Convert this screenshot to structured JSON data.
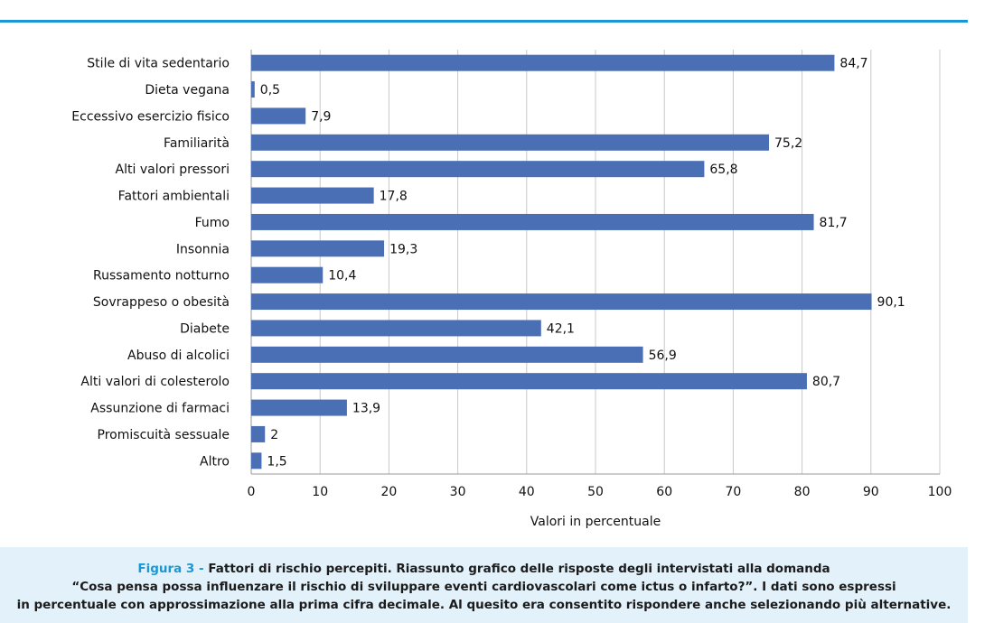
{
  "chart_data": {
    "type": "bar",
    "orientation": "horizontal",
    "categories": [
      "Stile di vita sedentario",
      "Dieta vegana",
      "Eccessivo esercizio fisico",
      "Familiarità",
      "Alti valori pressori",
      "Fattori ambientali",
      "Fumo",
      "Insonnia",
      "Russamento notturno",
      "Sovrappeso o obesità",
      "Diabete",
      "Abuso di alcolici",
      "Alti valori di colesterolo",
      "Assunzione di farmaci",
      "Promiscuità sessuale",
      "Altro"
    ],
    "values": [
      84.7,
      0.5,
      7.9,
      75.2,
      65.8,
      17.8,
      81.7,
      19.3,
      10.4,
      90.1,
      42.1,
      56.9,
      80.7,
      13.9,
      2,
      1.5
    ],
    "value_labels": [
      "84,7",
      "0,5",
      "7,9",
      "75,2",
      "65,8",
      "17,8",
      "81,7",
      "19,3",
      "10,4",
      "90,1",
      "42,1",
      "56,9",
      "80,7",
      "13,9",
      "2",
      "1,5"
    ],
    "xlabel": "Valori in percentuale",
    "ylabel": "",
    "xlim": [
      0,
      100
    ],
    "xticks": [
      0,
      10,
      20,
      30,
      40,
      50,
      60,
      70,
      80,
      90,
      100
    ],
    "grid": "vertical",
    "legend": "none",
    "bar_color": "#4a6fb5",
    "grid_color": "#c8c8c8"
  },
  "caption": {
    "label": "Figura 3 -",
    "line1": "Fattori di rischio percepiti. Riassunto grafico delle risposte degli intervistati alla domanda",
    "line2": "“Cosa pensa possa influenzare il rischio di sviluppare eventi cardiovascolari come ictus o infarto?”. I dati sono espressi",
    "line3": "in percentuale con approssimazione alla prima cifra decimale. Al quesito era consentito rispondere anche selezionando più alternative."
  },
  "colors": {
    "accent": "#1a98d5",
    "caption_background": "#e2f1fa"
  }
}
